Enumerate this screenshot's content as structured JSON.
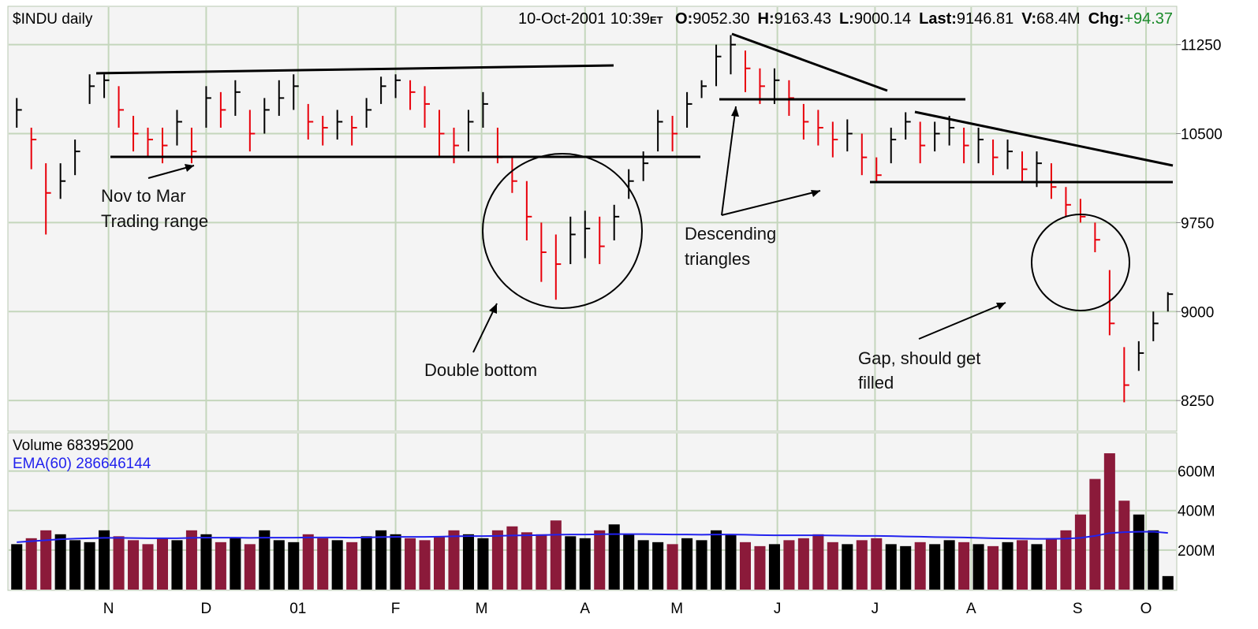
{
  "chart_data": {
    "type": "ohlc",
    "header": {
      "symbol": "$INDU daily",
      "datetime": "10-Oct-2001 10:39",
      "tz": "ET",
      "fields": [
        {
          "label": "O:",
          "value": "9052.30"
        },
        {
          "label": "H:",
          "value": "9163.43"
        },
        {
          "label": "L:",
          "value": "9000.14"
        },
        {
          "label": "Last:",
          "value": "9146.81"
        },
        {
          "label": "V:",
          "value": "68.4M"
        },
        {
          "label": "Chg:",
          "value": "+94.37"
        }
      ]
    },
    "annotations": [
      "Nov to Mar",
      "Trading range",
      "Double bottom",
      "Descending",
      "triangles",
      "Gap, should get",
      "filled"
    ],
    "xlim": [
      -0.5,
      79.5
    ],
    "xticks": [
      {
        "value": 6.3,
        "label": "N"
      },
      {
        "value": 13,
        "label": "D"
      },
      {
        "value": 19.3,
        "label": "01"
      },
      {
        "value": 26,
        "label": "F"
      },
      {
        "value": 31.9,
        "label": "M"
      },
      {
        "value": 39,
        "label": "A"
      },
      {
        "value": 45.3,
        "label": "M"
      },
      {
        "value": 52.2,
        "label": "J"
      },
      {
        "value": 58.9,
        "label": "J"
      },
      {
        "value": 65.5,
        "label": "A"
      },
      {
        "value": 72.8,
        "label": "S"
      },
      {
        "value": 77.5,
        "label": "O"
      }
    ],
    "ylim": [
      8005,
      11560
    ],
    "yticks": [
      8250,
      9000,
      9750,
      10500,
      11250
    ],
    "grid": true,
    "up_color": "#000000",
    "down_color": "#e8000b",
    "high": [
      10800,
      10550,
      10250,
      10250,
      10450,
      11000,
      11000,
      10900,
      10650,
      10550,
      10550,
      10700,
      10550,
      10900,
      10850,
      10950,
      10700,
      10800,
      10950,
      11000,
      10750,
      10650,
      10700,
      10650,
      10800,
      10980,
      11000,
      10950,
      10900,
      10700,
      10550,
      10700,
      10850,
      10550,
      10300,
      10100,
      9750,
      9650,
      9800,
      9850,
      9800,
      9900,
      10200,
      10350,
      10700,
      10650,
      10850,
      10950,
      11250,
      11330,
      11200,
      11050,
      11050,
      10950,
      10750,
      10700,
      10600,
      10620,
      10500,
      10300,
      10550,
      10680,
      10600,
      10600,
      10650,
      10550,
      10550,
      10450,
      10450,
      10350,
      10350,
      10250,
      10050,
      9950,
      9750,
      9350,
      8700,
      8750,
      9000,
      9163.43
    ],
    "low": [
      10550,
      10200,
      9650,
      9950,
      10150,
      10750,
      10800,
      10550,
      10350,
      10300,
      10250,
      10400,
      10250,
      10550,
      10550,
      10650,
      10350,
      10500,
      10650,
      10700,
      10450,
      10400,
      10450,
      10400,
      10550,
      10750,
      10800,
      10700,
      10550,
      10300,
      10250,
      10350,
      10550,
      10250,
      10000,
      9600,
      9250,
      9100,
      9400,
      9450,
      9400,
      9600,
      9950,
      10100,
      10350,
      10350,
      10550,
      10800,
      10900,
      11000,
      10850,
      10750,
      10750,
      10650,
      10450,
      10400,
      10300,
      10350,
      10150,
      10100,
      10250,
      10450,
      10250,
      10350,
      10400,
      10250,
      10250,
      10150,
      10200,
      10100,
      10050,
      9950,
      9800,
      9750,
      9500,
      8800,
      8235,
      8500,
      8750,
      9000.14
    ],
    "close": [
      10700,
      10450,
      10000,
      10100,
      10350,
      10900,
      10950,
      10700,
      10500,
      10450,
      10400,
      10600,
      10350,
      10800,
      10700,
      10850,
      10500,
      10700,
      10800,
      10900,
      10600,
      10550,
      10600,
      10550,
      10700,
      10900,
      10950,
      10850,
      10750,
      10500,
      10400,
      10600,
      10750,
      10300,
      10100,
      9800,
      9500,
      9400,
      9650,
      9700,
      9550,
      9800,
      10100,
      10250,
      10600,
      10500,
      10750,
      10900,
      11150,
      11250,
      11050,
      10900,
      10950,
      10800,
      10600,
      10550,
      10450,
      10500,
      10300,
      10150,
      10450,
      10600,
      10400,
      10500,
      10550,
      10400,
      10450,
      10300,
      10350,
      10200,
      10250,
      10050,
      9900,
      9800,
      9605,
      8900,
      8380,
      8650,
      8900,
      9146.81
    ],
    "volume_panel": {
      "label": "Volume",
      "label_value": 68395200,
      "ema_label": "EMA(60)",
      "ema_value": 286646144,
      "ema_color": "#2222ee",
      "down_color": "#8b1a3a",
      "up_color": "#000000",
      "ylim": [
        0,
        790
      ],
      "yticks": [
        {
          "value": 200,
          "label": "200M"
        },
        {
          "value": 400,
          "label": "400M"
        },
        {
          "value": 600,
          "label": "600M"
        }
      ],
      "volume": [
        230,
        260,
        300,
        280,
        250,
        240,
        300,
        270,
        250,
        230,
        260,
        250,
        300,
        280,
        240,
        260,
        230,
        300,
        250,
        240,
        280,
        260,
        250,
        240,
        270,
        300,
        280,
        260,
        250,
        270,
        300,
        280,
        260,
        300,
        320,
        290,
        280,
        350,
        270,
        260,
        300,
        330,
        280,
        250,
        240,
        230,
        260,
        250,
        300,
        280,
        240,
        220,
        230,
        250,
        260,
        280,
        240,
        230,
        250,
        260,
        230,
        220,
        240,
        230,
        250,
        240,
        230,
        220,
        240,
        250,
        230,
        260,
        300,
        380,
        560,
        690,
        450,
        380,
        300,
        68.3952
      ],
      "ema": [
        240,
        245,
        250,
        255,
        258,
        260,
        262,
        262,
        261,
        260,
        260,
        260,
        262,
        263,
        263,
        263,
        262,
        263,
        263,
        263,
        264,
        264,
        264,
        263,
        264,
        266,
        267,
        267,
        267,
        268,
        270,
        271,
        271,
        272,
        274,
        275,
        276,
        278,
        279,
        279,
        280,
        281,
        281,
        281,
        280,
        279,
        279,
        278,
        279,
        279,
        278,
        276,
        275,
        275,
        275,
        275,
        274,
        273,
        272,
        272,
        271,
        269,
        268,
        266,
        265,
        264,
        262,
        260,
        259,
        258,
        257,
        257,
        258,
        262,
        272,
        286,
        291,
        293,
        293,
        286.646144
      ]
    }
  }
}
